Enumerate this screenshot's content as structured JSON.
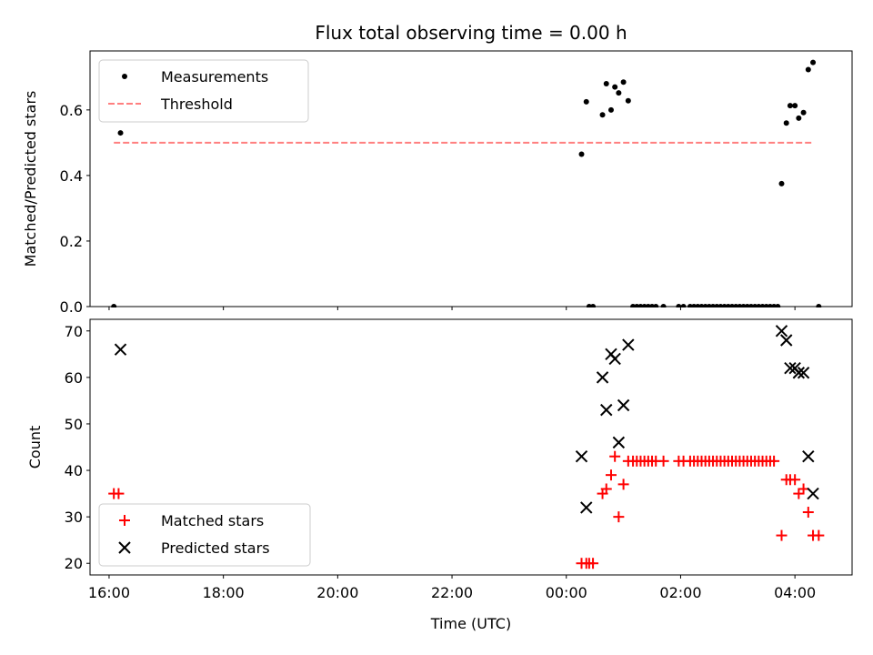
{
  "chart_data": [
    {
      "type": "scatter",
      "title": "Flux total observing time = 0.00 h",
      "xlabel": "",
      "ylabel": "Matched/Predicted stars",
      "xlim": [
        "15:40",
        "05:00"
      ],
      "ylim": [
        0,
        0.78
      ],
      "yticks": [
        0.0,
        0.2,
        0.4,
        0.6
      ],
      "ytick_labels": [
        "0.0",
        "0.2",
        "0.4",
        "0.6"
      ],
      "legend": {
        "placement": "top-left",
        "entries": [
          "Measurements",
          "Threshold"
        ]
      },
      "series": [
        {
          "name": "Measurements",
          "marker": "dot",
          "color": "#000000",
          "points": [
            [
              "16:05",
              0.0
            ],
            [
              "16:12",
              0.53
            ],
            [
              "00:16",
              0.465
            ],
            [
              "00:21",
              0.625
            ],
            [
              "00:24",
              0.0
            ],
            [
              "00:28",
              0.0
            ],
            [
              "00:38",
              0.585
            ],
            [
              "00:42",
              0.68
            ],
            [
              "00:47",
              0.6
            ],
            [
              "00:51",
              0.67
            ],
            [
              "00:55",
              0.652
            ],
            [
              "01:00",
              0.685
            ],
            [
              "01:05",
              0.628
            ],
            [
              "01:10",
              0.0
            ],
            [
              "01:14",
              0.0
            ],
            [
              "01:18",
              0.0
            ],
            [
              "01:22",
              0.0
            ],
            [
              "01:26",
              0.0
            ],
            [
              "01:30",
              0.0
            ],
            [
              "01:34",
              0.0
            ],
            [
              "01:42",
              0.0
            ],
            [
              "01:58",
              0.0
            ],
            [
              "02:03",
              0.0
            ],
            [
              "02:10",
              0.0
            ],
            [
              "02:14",
              0.0
            ],
            [
              "02:18",
              0.0
            ],
            [
              "02:22",
              0.0
            ],
            [
              "02:26",
              0.0
            ],
            [
              "02:30",
              0.0
            ],
            [
              "02:34",
              0.0
            ],
            [
              "02:38",
              0.0
            ],
            [
              "02:42",
              0.0
            ],
            [
              "02:46",
              0.0
            ],
            [
              "02:50",
              0.0
            ],
            [
              "02:54",
              0.0
            ],
            [
              "02:58",
              0.0
            ],
            [
              "03:02",
              0.0
            ],
            [
              "03:06",
              0.0
            ],
            [
              "03:10",
              0.0
            ],
            [
              "03:14",
              0.0
            ],
            [
              "03:18",
              0.0
            ],
            [
              "03:22",
              0.0
            ],
            [
              "03:26",
              0.0
            ],
            [
              "03:30",
              0.0
            ],
            [
              "03:34",
              0.0
            ],
            [
              "03:38",
              0.0
            ],
            [
              "03:42",
              0.0
            ],
            [
              "03:46",
              0.375
            ],
            [
              "03:51",
              0.56
            ],
            [
              "03:55",
              0.613
            ],
            [
              "04:00",
              0.613
            ],
            [
              "04:04",
              0.575
            ],
            [
              "04:09",
              0.592
            ],
            [
              "04:14",
              0.723
            ],
            [
              "04:19",
              0.745
            ],
            [
              "04:25",
              0.0
            ]
          ]
        },
        {
          "name": "Threshold",
          "style": "dashed-line",
          "color": "#ff7f7f",
          "points": [
            [
              "16:05",
              0.5
            ],
            [
              "04:20",
              0.5
            ]
          ]
        }
      ]
    },
    {
      "type": "scatter",
      "title": "",
      "xlabel": "Time (UTC)",
      "ylabel": "Count",
      "xlim": [
        "15:40",
        "05:00"
      ],
      "ylim": [
        17.5,
        72.5
      ],
      "xticks": [
        "16:00",
        "18:00",
        "20:00",
        "22:00",
        "00:00",
        "02:00",
        "04:00"
      ],
      "yticks": [
        20,
        30,
        40,
        50,
        60,
        70
      ],
      "ytick_labels": [
        "20",
        "30",
        "40",
        "50",
        "60",
        "70"
      ],
      "legend": {
        "placement": "bottom-left",
        "entries": [
          "Matched stars",
          "Predicted stars"
        ]
      },
      "series": [
        {
          "name": "Matched stars",
          "marker": "plus",
          "color": "#ff0000",
          "points": [
            [
              "16:05",
              35
            ],
            [
              "16:10",
              35
            ],
            [
              "00:16",
              20
            ],
            [
              "00:21",
              20
            ],
            [
              "00:24",
              20
            ],
            [
              "00:28",
              20
            ],
            [
              "00:38",
              35
            ],
            [
              "00:42",
              36
            ],
            [
              "00:47",
              39
            ],
            [
              "00:51",
              43
            ],
            [
              "00:55",
              30
            ],
            [
              "01:00",
              37
            ],
            [
              "01:05",
              42
            ],
            [
              "01:10",
              42
            ],
            [
              "01:14",
              42
            ],
            [
              "01:18",
              42
            ],
            [
              "01:22",
              42
            ],
            [
              "01:26",
              42
            ],
            [
              "01:30",
              42
            ],
            [
              "01:34",
              42
            ],
            [
              "01:42",
              42
            ],
            [
              "01:58",
              42
            ],
            [
              "02:03",
              42
            ],
            [
              "02:10",
              42
            ],
            [
              "02:14",
              42
            ],
            [
              "02:18",
              42
            ],
            [
              "02:22",
              42
            ],
            [
              "02:26",
              42
            ],
            [
              "02:30",
              42
            ],
            [
              "02:34",
              42
            ],
            [
              "02:38",
              42
            ],
            [
              "02:42",
              42
            ],
            [
              "02:46",
              42
            ],
            [
              "02:50",
              42
            ],
            [
              "02:54",
              42
            ],
            [
              "02:58",
              42
            ],
            [
              "03:02",
              42
            ],
            [
              "03:06",
              42
            ],
            [
              "03:10",
              42
            ],
            [
              "03:14",
              42
            ],
            [
              "03:18",
              42
            ],
            [
              "03:22",
              42
            ],
            [
              "03:26",
              42
            ],
            [
              "03:30",
              42
            ],
            [
              "03:34",
              42
            ],
            [
              "03:38",
              42
            ],
            [
              "03:46",
              26
            ],
            [
              "03:51",
              38
            ],
            [
              "03:55",
              38
            ],
            [
              "04:00",
              38
            ],
            [
              "04:04",
              35
            ],
            [
              "04:09",
              36
            ],
            [
              "04:14",
              31
            ],
            [
              "04:19",
              26
            ],
            [
              "04:25",
              26
            ]
          ]
        },
        {
          "name": "Predicted stars",
          "marker": "x",
          "color": "#000000",
          "points": [
            [
              "16:12",
              66
            ],
            [
              "00:16",
              43
            ],
            [
              "00:21",
              32
            ],
            [
              "00:38",
              60
            ],
            [
              "00:42",
              53
            ],
            [
              "00:47",
              65
            ],
            [
              "00:51",
              64
            ],
            [
              "00:55",
              46
            ],
            [
              "01:00",
              54
            ],
            [
              "01:05",
              67
            ],
            [
              "03:46",
              70
            ],
            [
              "03:51",
              68
            ],
            [
              "03:55",
              62
            ],
            [
              "04:00",
              62
            ],
            [
              "04:04",
              61
            ],
            [
              "04:09",
              61
            ],
            [
              "04:14",
              43
            ],
            [
              "04:19",
              35
            ]
          ]
        }
      ]
    }
  ]
}
